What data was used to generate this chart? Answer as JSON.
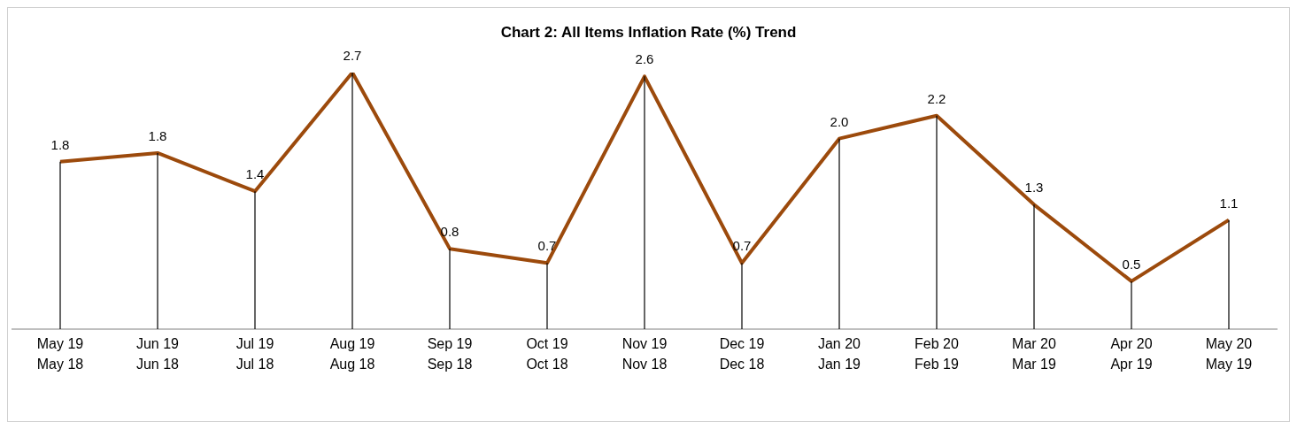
{
  "chart_data": {
    "type": "line",
    "title": "Chart 2: All Items Inflation Rate (%) Trend",
    "categories": [
      "May 19\nMay 18",
      "Jun 19\nJun 18",
      "Jul 19\nJul 18",
      "Aug 19\nAug 18",
      "Sep 19\nSep 18",
      "Oct 19\nOct 18",
      "Nov 19\nNov 18",
      "Dec 19\nDec 18",
      "Jan 20\nJan 19",
      "Feb 20\nFeb 19",
      "Mar 20\nMar 19",
      "Apr 20\nApr 19",
      "May 20\nMay 19"
    ],
    "series": [
      {
        "color": "#9c4a0c",
        "values": [
          1.75,
          1.84,
          1.44,
          2.68,
          0.84,
          0.69,
          2.64,
          0.69,
          1.99,
          2.23,
          1.3,
          0.5,
          1.14
        ],
        "value_labels": [
          "1.8",
          "1.8",
          "1.4",
          "2.7",
          "0.8",
          "0.7",
          "2.6",
          "0.7",
          "2.0",
          "2.2",
          "1.3",
          "0.5",
          "1.1"
        ]
      }
    ],
    "tick_labels": "x",
    "grid": "x",
    "marker": "none",
    "line_style": "solid"
  }
}
